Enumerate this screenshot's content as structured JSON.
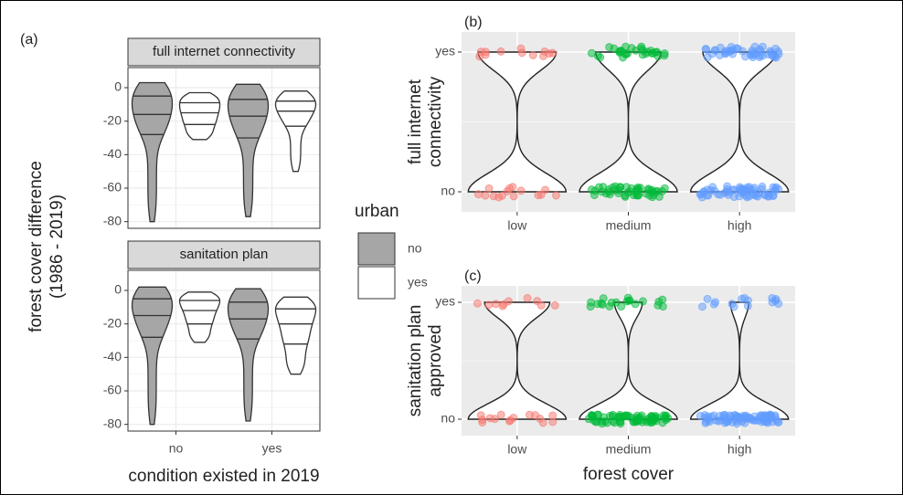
{
  "chart_data": [
    {
      "type": "violin",
      "panel_label": "(a)",
      "ylabel": [
        "forest cover difference",
        "(1986 - 2019)"
      ],
      "xlabel": "condition existed in 2019",
      "categories": [
        "no",
        "yes"
      ],
      "legend_title": "urban",
      "series": [
        {
          "name": "no",
          "color": "#a6a6a6"
        },
        {
          "name": "yes",
          "color": "#ffffff"
        }
      ],
      "ylim": [
        -84,
        12
      ],
      "yticks": [
        0,
        -20,
        -40,
        -60,
        -80
      ],
      "grid": true,
      "facets": [
        {
          "title": "full internet connectivity",
          "values": [
            [
              {
                "min": -80,
                "q1": -28,
                "median": -16,
                "q3": -5,
                "max": 3
              },
              {
                "min": -77,
                "q1": -30,
                "median": -17,
                "q3": -7,
                "max": 2
              }
            ],
            [
              {
                "min": -31,
                "q1": -22,
                "median": -15,
                "q3": -9,
                "max": -3
              },
              {
                "min": -50,
                "q1": -23,
                "median": -14,
                "q3": -8,
                "max": -2
              }
            ]
          ]
        },
        {
          "title": "sanitation plan",
          "values": [
            [
              {
                "min": -80,
                "q1": -28,
                "median": -15,
                "q3": -5,
                "max": 2
              },
              {
                "min": -78,
                "q1": -29,
                "median": -17,
                "q3": -7,
                "max": 1
              }
            ],
            [
              {
                "min": -31,
                "q1": -20,
                "median": -12,
                "q3": -6,
                "max": -1
              },
              {
                "min": -50,
                "q1": -32,
                "median": -20,
                "q3": -11,
                "max": -4
              }
            ]
          ]
        }
      ]
    },
    {
      "type": "binary-violin",
      "panel_label": "(b)",
      "ylabel": [
        "full internet",
        "connectivity"
      ],
      "categories": [
        "low",
        "medium",
        "high"
      ],
      "y_categories": [
        "no",
        "yes"
      ],
      "colors": [
        "#f8766d",
        "#00ba38",
        "#619cff"
      ],
      "counts": [
        [
          15,
          12
        ],
        [
          45,
          30
        ],
        [
          60,
          45
        ]
      ],
      "grid": true
    },
    {
      "type": "binary-violin",
      "panel_label": "(c)",
      "ylabel": [
        "sanitation plan",
        "approved"
      ],
      "xlabel": "forest cover",
      "categories": [
        "low",
        "medium",
        "high"
      ],
      "y_categories": [
        "no",
        "yes"
      ],
      "colors": [
        "#f8766d",
        "#00ba38",
        "#619cff"
      ],
      "counts": [
        [
          15,
          10
        ],
        [
          70,
          20
        ],
        [
          80,
          15
        ]
      ],
      "grid": true
    }
  ]
}
